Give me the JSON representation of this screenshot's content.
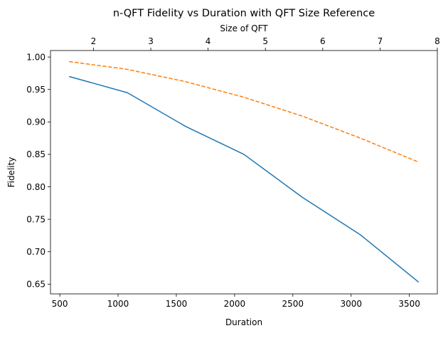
{
  "chart_data": {
    "type": "line",
    "title": "n-QFT Fidelity vs Duration with QFT Size Reference",
    "xlabel": "Duration",
    "ylabel": "Fidelity",
    "top_xlabel": "Size of QFT",
    "xlim": [
      420,
      3740
    ],
    "ylim": [
      0.635,
      1.01
    ],
    "top_xlim": [
      1.25,
      8.0
    ],
    "x_ticks": [
      500,
      1000,
      1500,
      2000,
      2500,
      3000,
      3500
    ],
    "y_ticks": [
      0.65,
      0.7,
      0.75,
      0.8,
      0.85,
      0.9,
      0.95,
      1.0
    ],
    "top_x_ticks": [
      2,
      3,
      4,
      5,
      6,
      7,
      8
    ],
    "grid": false,
    "series": [
      {
        "color": "#1f77b4",
        "style": "solid",
        "x": [
          580,
          1080,
          1580,
          2080,
          2580,
          3080,
          3580
        ],
        "y": [
          0.97,
          0.945,
          0.893,
          0.85,
          0.784,
          0.726,
          0.653
        ]
      },
      {
        "color": "#ff7f0e",
        "style": "dashed",
        "x": [
          580,
          1080,
          1580,
          2080,
          2580,
          3080,
          3580
        ],
        "y": [
          0.993,
          0.981,
          0.962,
          0.938,
          0.909,
          0.875,
          0.838
        ]
      }
    ]
  }
}
